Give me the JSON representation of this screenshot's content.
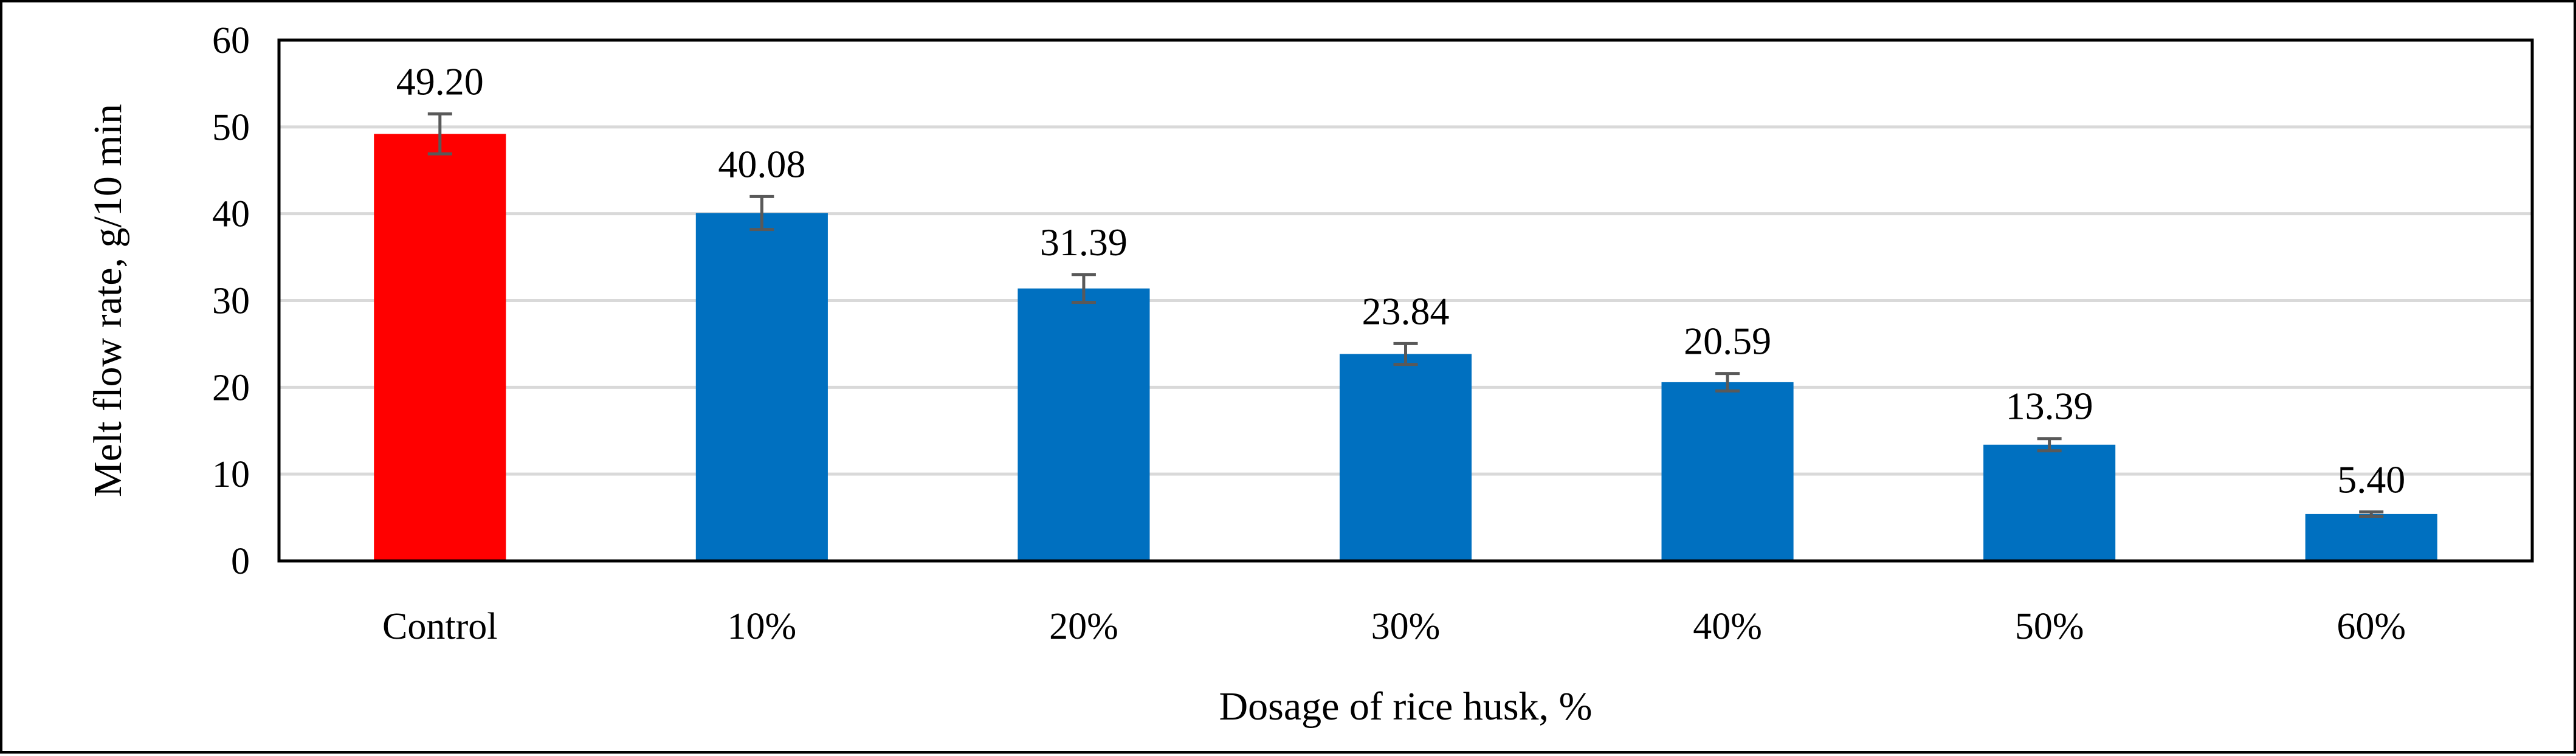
{
  "chart_data": {
    "type": "bar",
    "categories": [
      "Control",
      "10%",
      "20%",
      "30%",
      "40%",
      "50%",
      "60%"
    ],
    "values": [
      49.2,
      40.08,
      31.39,
      23.84,
      20.59,
      13.39,
      5.4
    ],
    "value_labels": [
      "49.20",
      "40.08",
      "31.39",
      "23.84",
      "20.59",
      "13.39",
      "5.40"
    ],
    "error": [
      2.3,
      1.9,
      1.6,
      1.2,
      1.0,
      0.7,
      0.25
    ],
    "colors": [
      "#ff0000",
      "#0070c0",
      "#0070c0",
      "#0070c0",
      "#0070c0",
      "#0070c0",
      "#0070c0"
    ],
    "error_color": "#595959",
    "grid_color": "#d9d9d9",
    "xlabel": "Dosage of rice husk, %",
    "ylabel": "Melt flow rate, g/10 min",
    "ylim": [
      0,
      60
    ],
    "yticks": [
      0,
      10,
      20,
      30,
      40,
      50,
      60
    ],
    "grid": true,
    "legend": "none"
  }
}
